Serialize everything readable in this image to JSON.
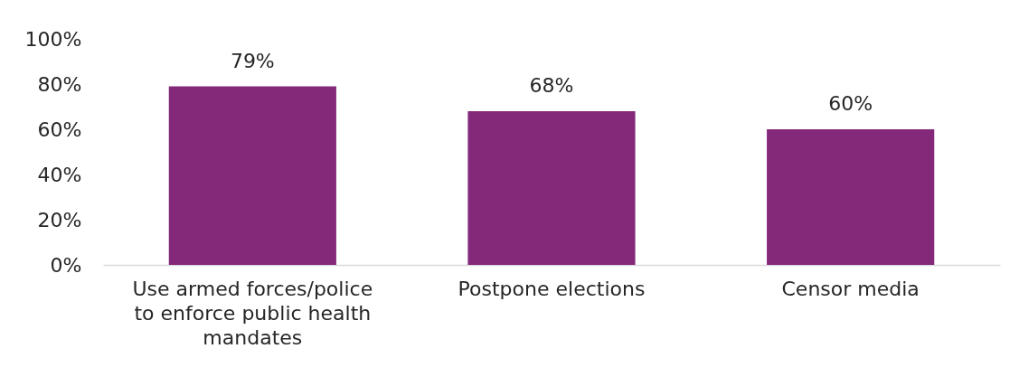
{
  "chart_data": {
    "type": "bar",
    "categories": [
      "Use armed forces/police to enforce public health mandates",
      "Postpone elections",
      "Censor media"
    ],
    "values": [
      79,
      68,
      60
    ],
    "color": "#84287a",
    "value_labels": [
      "79%",
      "68%",
      "60%"
    ],
    "ylim": [
      0,
      100
    ],
    "yticks": [
      {
        "value": 0,
        "label": "0%"
      },
      {
        "value": 20,
        "label": "20%"
      },
      {
        "value": 40,
        "label": "40%"
      },
      {
        "value": 60,
        "label": "60%"
      },
      {
        "value": 80,
        "label": "80%"
      },
      {
        "value": 100,
        "label": "100%"
      }
    ]
  }
}
